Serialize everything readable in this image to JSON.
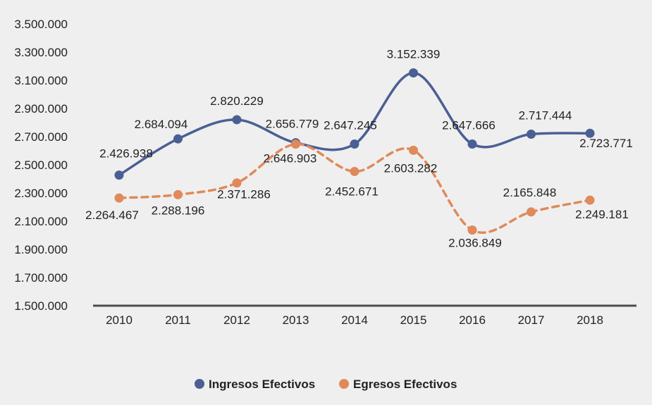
{
  "colors": {
    "background": "#efefef",
    "ingresos": "#4a5f94",
    "egresos": "#e0895a",
    "axis": "#4d4d4d"
  },
  "chart_data": {
    "type": "line",
    "x": [
      "2010",
      "2011",
      "2012",
      "2013",
      "2014",
      "2015",
      "2016",
      "2017",
      "2018"
    ],
    "ylim": [
      1500000,
      3500000
    ],
    "yticks": [
      "1.500.000",
      "1.700.000",
      "1.900.000",
      "2.100.000",
      "2.300.000",
      "2.500.000",
      "2.700.000",
      "2.900.000",
      "3.100.000",
      "3.300.000",
      "3.500.000"
    ],
    "grid": false,
    "legend_position": "bottom",
    "series": [
      {
        "name": "Ingresos Efectivos",
        "style": "solid",
        "values": [
          2426938,
          2684094,
          2820229,
          2656779,
          2647245,
          3152339,
          2647666,
          2717444,
          2723771
        ],
        "labels": [
          "2.426.938",
          "2.684.094",
          "2.820.229",
          "2.656.779",
          "2.647.245",
          "3.152.339",
          "2.647.666",
          "2.717.444",
          "2.723.771"
        ]
      },
      {
        "name": "Egresos Efectivos",
        "style": "dashed",
        "values": [
          2264467,
          2288196,
          2371286,
          2646903,
          2452671,
          2603282,
          2036849,
          2165848,
          2249181
        ],
        "labels": [
          "2.264.467",
          "2.288.196",
          "2.371.286",
          "2.646.903",
          "2.452.671",
          "2.603.282",
          "2.036.849",
          "2.165.848",
          "2.249.181"
        ]
      }
    ]
  }
}
